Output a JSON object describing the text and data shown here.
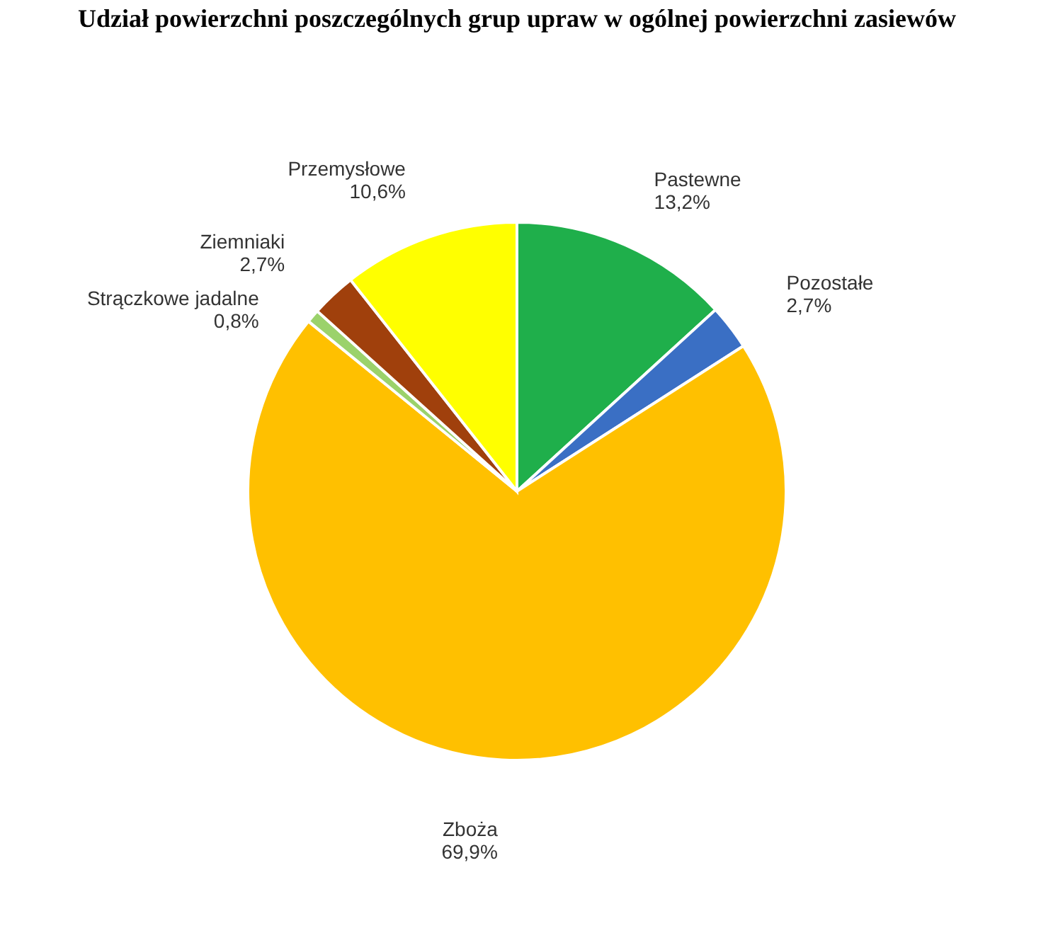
{
  "chart_data": {
    "type": "pie",
    "title": "Udział powierzchni poszczególnych grup upraw w ogólnej powierzchni zasiewów",
    "categories": [
      "Pastewne",
      "Pozostałe",
      "Zboża",
      "Strączkowe jadalne",
      "Ziemniaki",
      "Przemysłowe"
    ],
    "values": [
      13.2,
      2.7,
      69.9,
      0.8,
      2.7,
      10.6
    ],
    "value_labels": [
      "13,2%",
      "2,7%",
      "69,9%",
      "0,8%",
      "2,7%",
      "10,6%"
    ],
    "colors": [
      "#1faf4b",
      "#3a6fc4",
      "#ffc000",
      "#9bd26b",
      "#a0400c",
      "#ffff00"
    ]
  }
}
